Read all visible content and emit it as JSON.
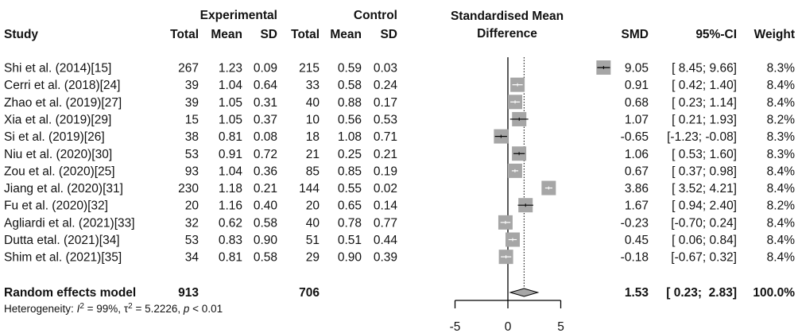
{
  "headers": {
    "study": "Study",
    "experimental": "Experimental",
    "control": "Control",
    "total": "Total",
    "mean": "Mean",
    "sd": "SD",
    "smd_plot_line1": "Standardised Mean",
    "smd_plot_line2": "Difference",
    "smd": "SMD",
    "ci": "95%-CI",
    "weight": "Weight"
  },
  "chart_data": {
    "type": "forest",
    "xlim": [
      -5,
      5
    ],
    "x_ticks": [
      "-5",
      "0",
      "5"
    ],
    "colors": {
      "square": "#a6a6a6",
      "diamond": "#a6a6a6",
      "line": "#000000"
    },
    "studies": [
      {
        "study": "Shi et al. (2014)[15]",
        "e_total": "267",
        "e_mean": "1.23",
        "e_sd": "0.09",
        "c_total": "215",
        "c_mean": "0.59",
        "c_sd": "0.03",
        "smd": 9.05,
        "lo": 8.45,
        "hi": 9.66,
        "smd_text": "9.05",
        "ci_text": "[ 8.45;  9.66]",
        "weight": "8.3%"
      },
      {
        "study": "Cerri et al. (2018)[24]",
        "e_total": "39",
        "e_mean": "1.04",
        "e_sd": "0.64",
        "c_total": "33",
        "c_mean": "0.58",
        "c_sd": "0.24",
        "smd": 0.91,
        "lo": 0.42,
        "hi": 1.4,
        "smd_text": "0.91",
        "ci_text": "[ 0.42;  1.40]",
        "weight": "8.4%"
      },
      {
        "study": "Zhao et al. (2019)[27]",
        "e_total": "39",
        "e_mean": "1.05",
        "e_sd": "0.31",
        "c_total": "40",
        "c_mean": "0.88",
        "c_sd": "0.17",
        "smd": 0.68,
        "lo": 0.23,
        "hi": 1.14,
        "smd_text": "0.68",
        "ci_text": "[ 0.23;  1.14]",
        "weight": "8.4%"
      },
      {
        "study": "Xia et al. (2019)[29]",
        "e_total": "15",
        "e_mean": "1.05",
        "e_sd": "0.37",
        "c_total": "10",
        "c_mean": "0.56",
        "c_sd": "0.53",
        "smd": 1.07,
        "lo": 0.21,
        "hi": 1.93,
        "smd_text": "1.07",
        "ci_text": "[ 0.21;  1.93]",
        "weight": "8.2%"
      },
      {
        "study": "Si et al. (2019)[26]",
        "e_total": "38",
        "e_mean": "0.81",
        "e_sd": "0.08",
        "c_total": "18",
        "c_mean": "1.08",
        "c_sd": "0.71",
        "smd": -0.65,
        "lo": -1.23,
        "hi": -0.08,
        "smd_text": "-0.65",
        "ci_text": "[-1.23; -0.08]",
        "weight": "8.3%"
      },
      {
        "study": "Niu et al. (2020)[30]",
        "e_total": "53",
        "e_mean": "0.91",
        "e_sd": "0.72",
        "c_total": "21",
        "c_mean": "0.25",
        "c_sd": "0.21",
        "smd": 1.06,
        "lo": 0.53,
        "hi": 1.6,
        "smd_text": "1.06",
        "ci_text": "[ 0.53;  1.60]",
        "weight": "8.3%"
      },
      {
        "study": "Zou et al. (2020)[25]",
        "e_total": "93",
        "e_mean": "1.04",
        "e_sd": "0.36",
        "c_total": "85",
        "c_mean": "0.85",
        "c_sd": "0.19",
        "smd": 0.67,
        "lo": 0.37,
        "hi": 0.98,
        "smd_text": "0.67",
        "ci_text": "[ 0.37;  0.98]",
        "weight": "8.4%"
      },
      {
        "study": "Jiang et al. (2020)[31]",
        "e_total": "230",
        "e_mean": "1.18",
        "e_sd": "0.21",
        "c_total": "144",
        "c_mean": "0.55",
        "c_sd": "0.02",
        "smd": 3.86,
        "lo": 3.52,
        "hi": 4.21,
        "smd_text": "3.86",
        "ci_text": "[ 3.52;  4.21]",
        "weight": "8.4%"
      },
      {
        "study": "Fu et al. (2020)[32]",
        "e_total": "20",
        "e_mean": "1.16",
        "e_sd": "0.40",
        "c_total": "20",
        "c_mean": "0.65",
        "c_sd": "0.14",
        "smd": 1.67,
        "lo": 0.94,
        "hi": 2.4,
        "smd_text": "1.67",
        "ci_text": "[ 0.94;  2.40]",
        "weight": "8.2%"
      },
      {
        "study": "Agliardi et al. (2021)[33]",
        "e_total": "32",
        "e_mean": "0.62",
        "e_sd": "0.58",
        "c_total": "40",
        "c_mean": "0.78",
        "c_sd": "0.77",
        "smd": -0.23,
        "lo": -0.7,
        "hi": 0.24,
        "smd_text": "-0.23",
        "ci_text": "[-0.70;  0.24]",
        "weight": "8.4%"
      },
      {
        "study": "Dutta etal. (2021)[34]",
        "e_total": "53",
        "e_mean": "0.83",
        "e_sd": "0.90",
        "c_total": "51",
        "c_mean": "0.51",
        "c_sd": "0.44",
        "smd": 0.45,
        "lo": 0.06,
        "hi": 0.84,
        "smd_text": "0.45",
        "ci_text": "[ 0.06;  0.84]",
        "weight": "8.4%"
      },
      {
        "study": "Shim et al. (2021)[35]",
        "e_total": "34",
        "e_mean": "0.81",
        "e_sd": "0.58",
        "c_total": "29",
        "c_mean": "0.90",
        "c_sd": "0.39",
        "smd": -0.18,
        "lo": -0.67,
        "hi": 0.32,
        "smd_text": "-0.18",
        "ci_text": "[-0.67;  0.32]",
        "weight": "8.4%"
      }
    ],
    "summary": {
      "label": "Random effects model",
      "e_total": "913",
      "c_total": "706",
      "smd": 1.53,
      "lo": 0.23,
      "hi": 2.83,
      "smd_text": "1.53",
      "ci_text": "[ 0.23;  2.83]",
      "weight": "100.0%"
    },
    "heterogeneity": {
      "prefix": "Heterogeneity: ",
      "i2_symbol": "I",
      "i2_value": " = 99%, ",
      "tau_symbol": "τ",
      "tau_value": " = 5.2226, ",
      "p_symbol": "p",
      "p_value": " < 0.01"
    }
  }
}
